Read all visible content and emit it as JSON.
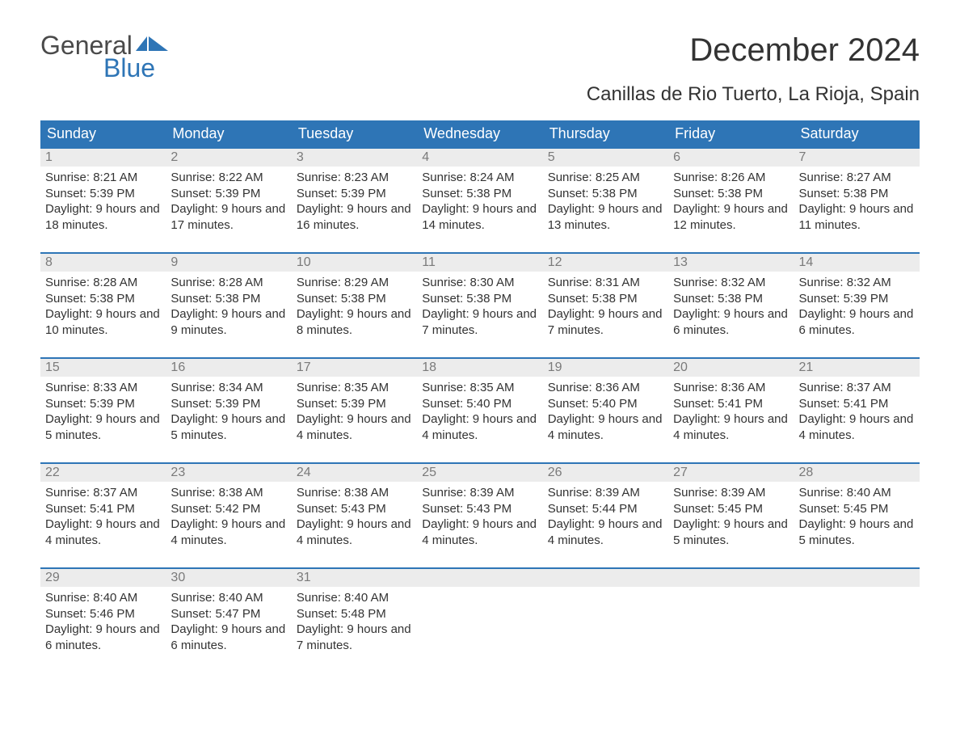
{
  "logo": {
    "word1": "General",
    "word2": "Blue"
  },
  "title": "December 2024",
  "location": "Canillas de Rio Tuerto, La Rioja, Spain",
  "colors": {
    "header_bg": "#2e75b6",
    "header_text": "#ffffff",
    "row_border": "#2e75b6",
    "daynum_bg": "#ececec",
    "daynum_text": "#7a7a7a",
    "body_text": "#333333",
    "background": "#ffffff",
    "logo_gray": "#4a4a4a",
    "logo_blue": "#2e75b6"
  },
  "typography": {
    "title_fontsize": 40,
    "location_fontsize": 24,
    "header_fontsize": 18,
    "daynum_fontsize": 16,
    "body_fontsize": 15,
    "font_family": "Arial"
  },
  "day_headers": [
    "Sunday",
    "Monday",
    "Tuesday",
    "Wednesday",
    "Thursday",
    "Friday",
    "Saturday"
  ],
  "labels": {
    "sunrise": "Sunrise:",
    "sunset": "Sunset:",
    "daylight": "Daylight:"
  },
  "weeks": [
    [
      {
        "n": "1",
        "sunrise": "8:21 AM",
        "sunset": "5:39 PM",
        "daylight": "9 hours and 18 minutes."
      },
      {
        "n": "2",
        "sunrise": "8:22 AM",
        "sunset": "5:39 PM",
        "daylight": "9 hours and 17 minutes."
      },
      {
        "n": "3",
        "sunrise": "8:23 AM",
        "sunset": "5:39 PM",
        "daylight": "9 hours and 16 minutes."
      },
      {
        "n": "4",
        "sunrise": "8:24 AM",
        "sunset": "5:38 PM",
        "daylight": "9 hours and 14 minutes."
      },
      {
        "n": "5",
        "sunrise": "8:25 AM",
        "sunset": "5:38 PM",
        "daylight": "9 hours and 13 minutes."
      },
      {
        "n": "6",
        "sunrise": "8:26 AM",
        "sunset": "5:38 PM",
        "daylight": "9 hours and 12 minutes."
      },
      {
        "n": "7",
        "sunrise": "8:27 AM",
        "sunset": "5:38 PM",
        "daylight": "9 hours and 11 minutes."
      }
    ],
    [
      {
        "n": "8",
        "sunrise": "8:28 AM",
        "sunset": "5:38 PM",
        "daylight": "9 hours and 10 minutes."
      },
      {
        "n": "9",
        "sunrise": "8:28 AM",
        "sunset": "5:38 PM",
        "daylight": "9 hours and 9 minutes."
      },
      {
        "n": "10",
        "sunrise": "8:29 AM",
        "sunset": "5:38 PM",
        "daylight": "9 hours and 8 minutes."
      },
      {
        "n": "11",
        "sunrise": "8:30 AM",
        "sunset": "5:38 PM",
        "daylight": "9 hours and 7 minutes."
      },
      {
        "n": "12",
        "sunrise": "8:31 AM",
        "sunset": "5:38 PM",
        "daylight": "9 hours and 7 minutes."
      },
      {
        "n": "13",
        "sunrise": "8:32 AM",
        "sunset": "5:38 PM",
        "daylight": "9 hours and 6 minutes."
      },
      {
        "n": "14",
        "sunrise": "8:32 AM",
        "sunset": "5:39 PM",
        "daylight": "9 hours and 6 minutes."
      }
    ],
    [
      {
        "n": "15",
        "sunrise": "8:33 AM",
        "sunset": "5:39 PM",
        "daylight": "9 hours and 5 minutes."
      },
      {
        "n": "16",
        "sunrise": "8:34 AM",
        "sunset": "5:39 PM",
        "daylight": "9 hours and 5 minutes."
      },
      {
        "n": "17",
        "sunrise": "8:35 AM",
        "sunset": "5:39 PM",
        "daylight": "9 hours and 4 minutes."
      },
      {
        "n": "18",
        "sunrise": "8:35 AM",
        "sunset": "5:40 PM",
        "daylight": "9 hours and 4 minutes."
      },
      {
        "n": "19",
        "sunrise": "8:36 AM",
        "sunset": "5:40 PM",
        "daylight": "9 hours and 4 minutes."
      },
      {
        "n": "20",
        "sunrise": "8:36 AM",
        "sunset": "5:41 PM",
        "daylight": "9 hours and 4 minutes."
      },
      {
        "n": "21",
        "sunrise": "8:37 AM",
        "sunset": "5:41 PM",
        "daylight": "9 hours and 4 minutes."
      }
    ],
    [
      {
        "n": "22",
        "sunrise": "8:37 AM",
        "sunset": "5:41 PM",
        "daylight": "9 hours and 4 minutes."
      },
      {
        "n": "23",
        "sunrise": "8:38 AM",
        "sunset": "5:42 PM",
        "daylight": "9 hours and 4 minutes."
      },
      {
        "n": "24",
        "sunrise": "8:38 AM",
        "sunset": "5:43 PM",
        "daylight": "9 hours and 4 minutes."
      },
      {
        "n": "25",
        "sunrise": "8:39 AM",
        "sunset": "5:43 PM",
        "daylight": "9 hours and 4 minutes."
      },
      {
        "n": "26",
        "sunrise": "8:39 AM",
        "sunset": "5:44 PM",
        "daylight": "9 hours and 4 minutes."
      },
      {
        "n": "27",
        "sunrise": "8:39 AM",
        "sunset": "5:45 PM",
        "daylight": "9 hours and 5 minutes."
      },
      {
        "n": "28",
        "sunrise": "8:40 AM",
        "sunset": "5:45 PM",
        "daylight": "9 hours and 5 minutes."
      }
    ],
    [
      {
        "n": "29",
        "sunrise": "8:40 AM",
        "sunset": "5:46 PM",
        "daylight": "9 hours and 6 minutes."
      },
      {
        "n": "30",
        "sunrise": "8:40 AM",
        "sunset": "5:47 PM",
        "daylight": "9 hours and 6 minutes."
      },
      {
        "n": "31",
        "sunrise": "8:40 AM",
        "sunset": "5:48 PM",
        "daylight": "9 hours and 7 minutes."
      },
      {
        "n": "",
        "empty": true
      },
      {
        "n": "",
        "empty": true
      },
      {
        "n": "",
        "empty": true
      },
      {
        "n": "",
        "empty": true
      }
    ]
  ]
}
